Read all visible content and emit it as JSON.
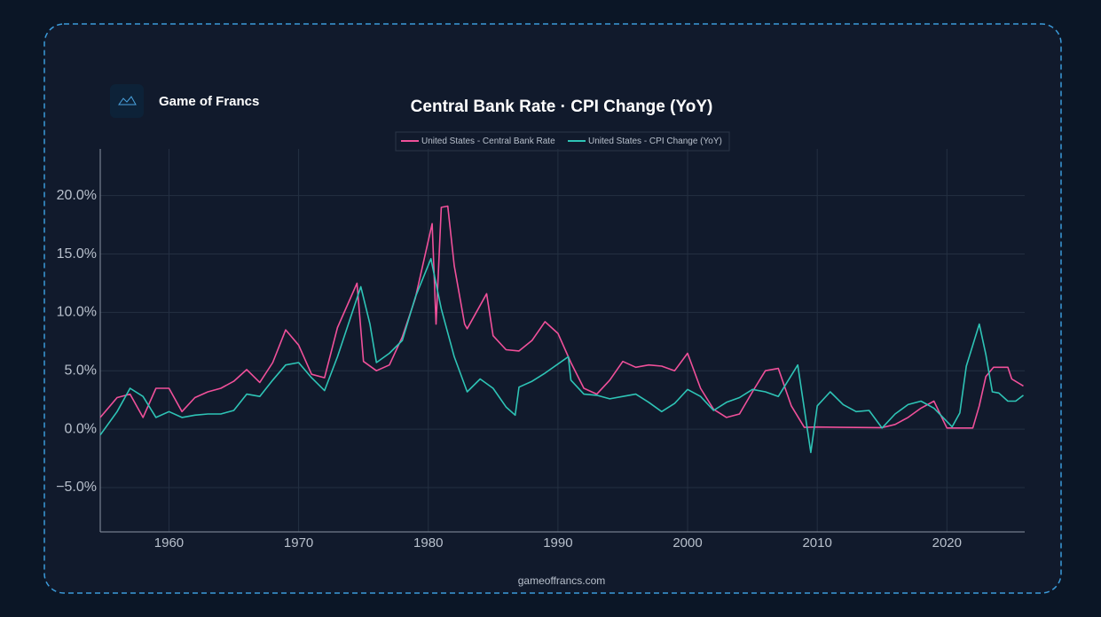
{
  "brand": "Game of Francs",
  "footer": "gameoffrancs.com",
  "chart_data": {
    "type": "line",
    "title": "Central Bank Rate · CPI Change (YoY)",
    "xlim": [
      1954.7,
      2026
    ],
    "xticks": [
      1960,
      1970,
      1980,
      1990,
      2000,
      2010,
      2020
    ],
    "ylim": [
      -8.8,
      24
    ],
    "yticks": [
      {
        "value": -5,
        "label": "−5.0%"
      },
      {
        "value": 0,
        "label": "0.0%"
      },
      {
        "value": 5,
        "label": "5.0%"
      },
      {
        "value": 10,
        "label": "10.0%"
      },
      {
        "value": 15,
        "label": "15.0%"
      },
      {
        "value": 20,
        "label": "20.0%"
      }
    ],
    "grid": true,
    "legend": "top",
    "series": [
      {
        "name": "United States - Central Bank Rate",
        "color": "#f0509a",
        "x": [
          1954.7,
          1956,
          1957,
          1958,
          1959,
          1960,
          1961,
          1962,
          1963,
          1964,
          1965,
          1966,
          1967,
          1968,
          1969,
          1970,
          1971,
          1972,
          1973,
          1974.5,
          1975,
          1976,
          1977,
          1978,
          1979,
          1980.3,
          1980.6,
          1981,
          1981.5,
          1982,
          1982.8,
          1983,
          1984.5,
          1985,
          1986,
          1987,
          1988,
          1989,
          1990,
          1991,
          1992,
          1993,
          1994,
          1995,
          1996,
          1997,
          1998,
          1999,
          2000,
          2001,
          2002,
          2003,
          2004,
          2005,
          2006,
          2007,
          2008,
          2009,
          2010,
          2012,
          2015,
          2016,
          2017,
          2018,
          2019,
          2020,
          2022,
          2022.5,
          2023,
          2023.6,
          2024.7,
          2025,
          2025.9
        ],
        "values": [
          1.0,
          2.7,
          3.0,
          1.0,
          3.5,
          3.5,
          1.5,
          2.7,
          3.2,
          3.5,
          4.1,
          5.1,
          4.0,
          5.7,
          8.5,
          7.2,
          4.7,
          4.4,
          8.7,
          12.5,
          5.8,
          5.0,
          5.5,
          7.9,
          11.2,
          17.6,
          9.0,
          19.0,
          19.1,
          14.0,
          9.0,
          8.6,
          11.6,
          8.0,
          6.8,
          6.7,
          7.6,
          9.2,
          8.2,
          5.7,
          3.5,
          3.0,
          4.2,
          5.8,
          5.3,
          5.5,
          5.4,
          5.0,
          6.5,
          3.5,
          1.7,
          1.0,
          1.3,
          3.2,
          5.0,
          5.2,
          2.0,
          0.15,
          0.18,
          0.15,
          0.13,
          0.4,
          1.0,
          1.8,
          2.4,
          0.1,
          0.1,
          2.0,
          4.5,
          5.3,
          5.3,
          4.3,
          3.7
        ]
      },
      {
        "name": "United States - CPI Change (YoY)",
        "color": "#2ec4b6",
        "x": [
          1954.7,
          1956,
          1957,
          1958,
          1959,
          1960,
          1961,
          1962,
          1963,
          1964,
          1965,
          1966,
          1967,
          1968,
          1969,
          1970,
          1971,
          1972,
          1973,
          1974.8,
          1975.5,
          1976,
          1977,
          1978,
          1979,
          1980.2,
          1981,
          1982,
          1983,
          1984,
          1985,
          1986,
          1986.7,
          1987,
          1988,
          1989,
          1990.8,
          1991,
          1992,
          1993,
          1994,
          1995,
          1996,
          1997,
          1998,
          1999,
          2000,
          2001,
          2002,
          2003,
          2004,
          2005,
          2006,
          2007,
          2008.5,
          2009.5,
          2010,
          2011,
          2012,
          2013,
          2014,
          2015,
          2016,
          2017,
          2018,
          2019,
          2020.4,
          2021,
          2021.5,
          2022.5,
          2023,
          2023.5,
          2024,
          2024.7,
          2025.3,
          2025.9
        ],
        "values": [
          -0.5,
          1.5,
          3.5,
          2.8,
          1.0,
          1.5,
          1.0,
          1.2,
          1.3,
          1.3,
          1.6,
          3.0,
          2.8,
          4.2,
          5.5,
          5.7,
          4.4,
          3.3,
          6.2,
          12.2,
          9.0,
          5.7,
          6.5,
          7.6,
          11.3,
          14.6,
          10.3,
          6.2,
          3.2,
          4.3,
          3.5,
          1.9,
          1.2,
          3.6,
          4.1,
          4.8,
          6.2,
          4.2,
          3.0,
          2.9,
          2.6,
          2.8,
          3.0,
          2.3,
          1.5,
          2.2,
          3.4,
          2.8,
          1.6,
          2.3,
          2.7,
          3.4,
          3.2,
          2.8,
          5.5,
          -2.0,
          2.0,
          3.2,
          2.1,
          1.5,
          1.6,
          0.1,
          1.3,
          2.1,
          2.4,
          1.8,
          0.2,
          1.4,
          5.4,
          9.0,
          6.4,
          3.2,
          3.1,
          2.4,
          2.4,
          2.9
        ]
      }
    ]
  }
}
